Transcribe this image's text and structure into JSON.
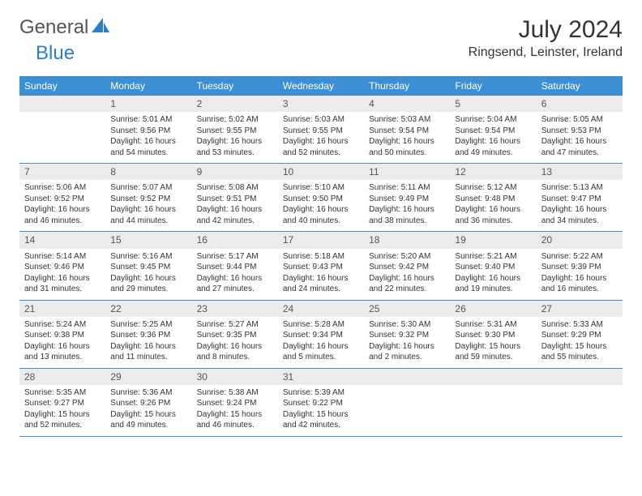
{
  "logo": {
    "text1": "General",
    "text2": "Blue"
  },
  "title": "July 2024",
  "location": "Ringsend, Leinster, Ireland",
  "colors": {
    "header_bg": "#3d8fd4",
    "header_text": "#ffffff",
    "daynum_bg": "#ebebeb",
    "border": "#3d8fd4",
    "logo_gray": "#555555",
    "logo_blue": "#2d7dc8"
  },
  "day_headers": [
    "Sunday",
    "Monday",
    "Tuesday",
    "Wednesday",
    "Thursday",
    "Friday",
    "Saturday"
  ],
  "weeks": [
    [
      {
        "n": "",
        "sr": "",
        "ss": "",
        "dl": ""
      },
      {
        "n": "1",
        "sr": "Sunrise: 5:01 AM",
        "ss": "Sunset: 9:56 PM",
        "dl": "Daylight: 16 hours and 54 minutes."
      },
      {
        "n": "2",
        "sr": "Sunrise: 5:02 AM",
        "ss": "Sunset: 9:55 PM",
        "dl": "Daylight: 16 hours and 53 minutes."
      },
      {
        "n": "3",
        "sr": "Sunrise: 5:03 AM",
        "ss": "Sunset: 9:55 PM",
        "dl": "Daylight: 16 hours and 52 minutes."
      },
      {
        "n": "4",
        "sr": "Sunrise: 5:03 AM",
        "ss": "Sunset: 9:54 PM",
        "dl": "Daylight: 16 hours and 50 minutes."
      },
      {
        "n": "5",
        "sr": "Sunrise: 5:04 AM",
        "ss": "Sunset: 9:54 PM",
        "dl": "Daylight: 16 hours and 49 minutes."
      },
      {
        "n": "6",
        "sr": "Sunrise: 5:05 AM",
        "ss": "Sunset: 9:53 PM",
        "dl": "Daylight: 16 hours and 47 minutes."
      }
    ],
    [
      {
        "n": "7",
        "sr": "Sunrise: 5:06 AM",
        "ss": "Sunset: 9:52 PM",
        "dl": "Daylight: 16 hours and 46 minutes."
      },
      {
        "n": "8",
        "sr": "Sunrise: 5:07 AM",
        "ss": "Sunset: 9:52 PM",
        "dl": "Daylight: 16 hours and 44 minutes."
      },
      {
        "n": "9",
        "sr": "Sunrise: 5:08 AM",
        "ss": "Sunset: 9:51 PM",
        "dl": "Daylight: 16 hours and 42 minutes."
      },
      {
        "n": "10",
        "sr": "Sunrise: 5:10 AM",
        "ss": "Sunset: 9:50 PM",
        "dl": "Daylight: 16 hours and 40 minutes."
      },
      {
        "n": "11",
        "sr": "Sunrise: 5:11 AM",
        "ss": "Sunset: 9:49 PM",
        "dl": "Daylight: 16 hours and 38 minutes."
      },
      {
        "n": "12",
        "sr": "Sunrise: 5:12 AM",
        "ss": "Sunset: 9:48 PM",
        "dl": "Daylight: 16 hours and 36 minutes."
      },
      {
        "n": "13",
        "sr": "Sunrise: 5:13 AM",
        "ss": "Sunset: 9:47 PM",
        "dl": "Daylight: 16 hours and 34 minutes."
      }
    ],
    [
      {
        "n": "14",
        "sr": "Sunrise: 5:14 AM",
        "ss": "Sunset: 9:46 PM",
        "dl": "Daylight: 16 hours and 31 minutes."
      },
      {
        "n": "15",
        "sr": "Sunrise: 5:16 AM",
        "ss": "Sunset: 9:45 PM",
        "dl": "Daylight: 16 hours and 29 minutes."
      },
      {
        "n": "16",
        "sr": "Sunrise: 5:17 AM",
        "ss": "Sunset: 9:44 PM",
        "dl": "Daylight: 16 hours and 27 minutes."
      },
      {
        "n": "17",
        "sr": "Sunrise: 5:18 AM",
        "ss": "Sunset: 9:43 PM",
        "dl": "Daylight: 16 hours and 24 minutes."
      },
      {
        "n": "18",
        "sr": "Sunrise: 5:20 AM",
        "ss": "Sunset: 9:42 PM",
        "dl": "Daylight: 16 hours and 22 minutes."
      },
      {
        "n": "19",
        "sr": "Sunrise: 5:21 AM",
        "ss": "Sunset: 9:40 PM",
        "dl": "Daylight: 16 hours and 19 minutes."
      },
      {
        "n": "20",
        "sr": "Sunrise: 5:22 AM",
        "ss": "Sunset: 9:39 PM",
        "dl": "Daylight: 16 hours and 16 minutes."
      }
    ],
    [
      {
        "n": "21",
        "sr": "Sunrise: 5:24 AM",
        "ss": "Sunset: 9:38 PM",
        "dl": "Daylight: 16 hours and 13 minutes."
      },
      {
        "n": "22",
        "sr": "Sunrise: 5:25 AM",
        "ss": "Sunset: 9:36 PM",
        "dl": "Daylight: 16 hours and 11 minutes."
      },
      {
        "n": "23",
        "sr": "Sunrise: 5:27 AM",
        "ss": "Sunset: 9:35 PM",
        "dl": "Daylight: 16 hours and 8 minutes."
      },
      {
        "n": "24",
        "sr": "Sunrise: 5:28 AM",
        "ss": "Sunset: 9:34 PM",
        "dl": "Daylight: 16 hours and 5 minutes."
      },
      {
        "n": "25",
        "sr": "Sunrise: 5:30 AM",
        "ss": "Sunset: 9:32 PM",
        "dl": "Daylight: 16 hours and 2 minutes."
      },
      {
        "n": "26",
        "sr": "Sunrise: 5:31 AM",
        "ss": "Sunset: 9:30 PM",
        "dl": "Daylight: 15 hours and 59 minutes."
      },
      {
        "n": "27",
        "sr": "Sunrise: 5:33 AM",
        "ss": "Sunset: 9:29 PM",
        "dl": "Daylight: 15 hours and 55 minutes."
      }
    ],
    [
      {
        "n": "28",
        "sr": "Sunrise: 5:35 AM",
        "ss": "Sunset: 9:27 PM",
        "dl": "Daylight: 15 hours and 52 minutes."
      },
      {
        "n": "29",
        "sr": "Sunrise: 5:36 AM",
        "ss": "Sunset: 9:26 PM",
        "dl": "Daylight: 15 hours and 49 minutes."
      },
      {
        "n": "30",
        "sr": "Sunrise: 5:38 AM",
        "ss": "Sunset: 9:24 PM",
        "dl": "Daylight: 15 hours and 46 minutes."
      },
      {
        "n": "31",
        "sr": "Sunrise: 5:39 AM",
        "ss": "Sunset: 9:22 PM",
        "dl": "Daylight: 15 hours and 42 minutes."
      },
      {
        "n": "",
        "sr": "",
        "ss": "",
        "dl": ""
      },
      {
        "n": "",
        "sr": "",
        "ss": "",
        "dl": ""
      },
      {
        "n": "",
        "sr": "",
        "ss": "",
        "dl": ""
      }
    ]
  ]
}
